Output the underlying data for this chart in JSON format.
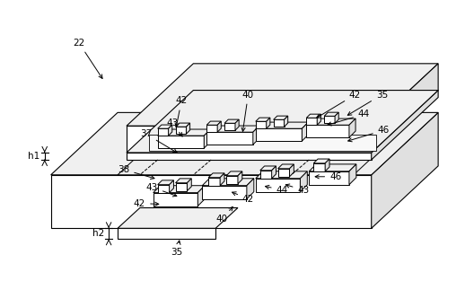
{
  "bg_color": "#ffffff",
  "lc": "#000000",
  "lw": 0.8,
  "fs": 7.5,
  "face_light": "#f0f0f0",
  "face_mid": "#e0e0e0",
  "face_dark": "#c8c8c8",
  "face_white": "#ffffff"
}
